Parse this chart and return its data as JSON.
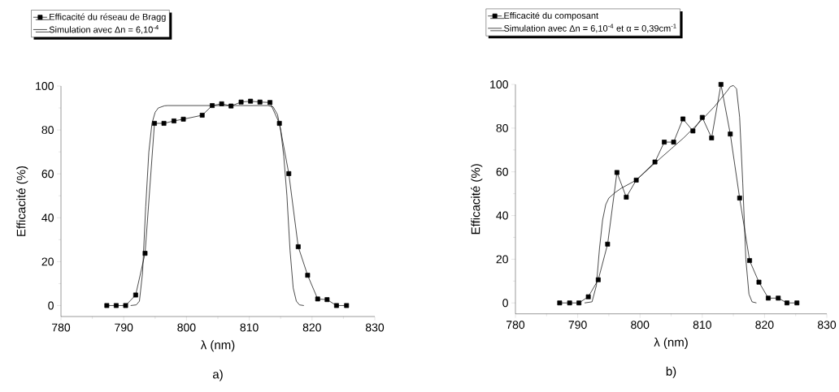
{
  "chart_data": [
    {
      "type": "line",
      "xlabel": "λ (nm)",
      "ylabel": "Efficacité (%)",
      "annotations": [
        "a)"
      ],
      "xlim": [
        780,
        830
      ],
      "ylim": [
        -5,
        100
      ],
      "xticks": [
        780,
        790,
        800,
        810,
        820,
        830
      ],
      "yticks": [
        0,
        20,
        40,
        60,
        80,
        100
      ],
      "legend": "top left",
      "line_style": "solid",
      "grid": false,
      "series": [
        {
          "name": "Efficacité du réseau de Bragg",
          "color": "#000000",
          "marker": "square",
          "x": [
            787.3,
            788.8,
            790.3,
            791.9,
            793.4,
            794.9,
            796.4,
            798.0,
            799.5,
            802.5,
            804.1,
            805.6,
            807.1,
            808.7,
            810.2,
            811.7,
            813.3,
            814.8,
            816.3,
            817.8,
            819.3,
            820.9,
            822.4,
            823.9,
            825.5
          ],
          "values": [
            0,
            0,
            0,
            4.8,
            23.8,
            83,
            83,
            84.1,
            84.9,
            86.7,
            91.1,
            91.9,
            90.9,
            92.7,
            93.1,
            92.7,
            92.5,
            83,
            60.1,
            26.8,
            13.8,
            3.0,
            2.7,
            0,
            0
          ]
        },
        {
          "name": "Simulation avec Δn = 6,10$^{-4}$",
          "color": "#000000",
          "marker": "none",
          "x": [
            791.1,
            792,
            792.5,
            793,
            793.5,
            794,
            794.5,
            795,
            795.5,
            796.5,
            797,
            813,
            813.8,
            814.5,
            815,
            815.5,
            816,
            816.5,
            817,
            817.5,
            818,
            818.7
          ],
          "values": [
            0,
            0.3,
            2,
            15,
            45,
            70,
            83,
            88,
            90,
            91,
            91.1,
            91.1,
            90.5,
            87,
            80,
            68,
            50,
            25,
            8,
            2,
            0.3,
            0
          ]
        }
      ]
    },
    {
      "type": "line",
      "xlabel": "λ (nm)",
      "ylabel": "Efficacité (%)",
      "annotations": [
        "b)"
      ],
      "xlim": [
        780,
        830
      ],
      "ylim": [
        -5,
        100
      ],
      "xticks": [
        780,
        790,
        800,
        810,
        820,
        830
      ],
      "yticks": [
        0,
        20,
        40,
        60,
        80,
        100
      ],
      "legend": "top left",
      "line_style": "solid",
      "grid": false,
      "series": [
        {
          "name": "Efficacité du composant",
          "color": "#000000",
          "marker": "square",
          "x": [
            787.1,
            788.7,
            790.2,
            791.7,
            793.3,
            794.8,
            796.3,
            797.8,
            799.4,
            802.4,
            803.9,
            805.4,
            806.9,
            808.5,
            810.0,
            811.5,
            813.0,
            814.5,
            816.0,
            817.6,
            819.1,
            820.6,
            822.2,
            823.6,
            825.2
          ],
          "values": [
            0,
            0,
            0,
            2.8,
            10.6,
            26.9,
            59.7,
            48.4,
            56.2,
            64.5,
            73.6,
            73.6,
            84.2,
            78.7,
            84.9,
            75.5,
            100,
            77.3,
            48.0,
            19.4,
            9.5,
            2.2,
            2.2,
            0,
            0
          ]
        },
        {
          "name": "Simulation avec Δn = 6,10$^{-4}$ et α = 0,39cm$^{-1}$",
          "color": "#000000",
          "marker": "none",
          "x": [
            791.1,
            792.3,
            793,
            793.5,
            794,
            794.5,
            795,
            796,
            797,
            799.4,
            802.4,
            805,
            807,
            810,
            812,
            813,
            814,
            814.5,
            815,
            815.5,
            816,
            816.5,
            817,
            817.5,
            818,
            818.7
          ],
          "values": [
            0,
            0.5,
            8,
            25,
            38,
            45,
            48,
            50.5,
            52.5,
            56.2,
            64,
            70.5,
            75.5,
            84,
            90,
            93.5,
            97,
            99,
            99.5,
            98,
            85,
            55,
            20,
            4,
            0.5,
            0
          ]
        }
      ]
    }
  ]
}
